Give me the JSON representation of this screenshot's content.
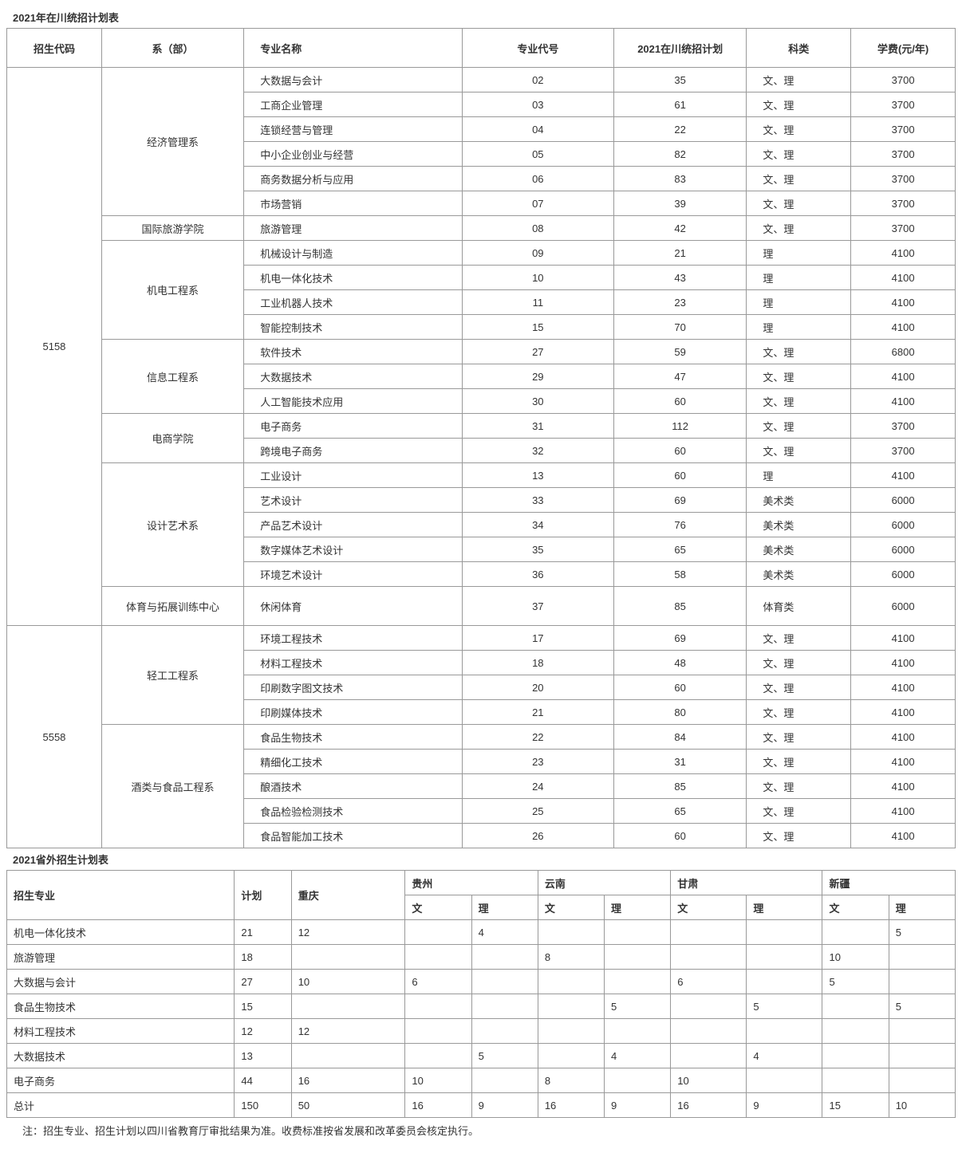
{
  "titles": {
    "t1": "2021年在川统招计划表",
    "t2": "2021省外招生计划表"
  },
  "headers1": {
    "code": "招生代码",
    "dept": "系（部）",
    "major": "专业名称",
    "majorCode": "专业代号",
    "plan": "2021在川统招计划",
    "category": "科类",
    "fee": "学费(元/年)"
  },
  "code1": "5158",
  "code2": "5558",
  "depts": {
    "d1": "经济管理系",
    "d2": "国际旅游学院",
    "d3": "机电工程系",
    "d4": "信息工程系",
    "d5": "电商学院",
    "d6": "设计艺术系",
    "d7": "体育与拓展训练中心",
    "d8": "轻工工程系",
    "d9": "酒类与食品工程系"
  },
  "rows1": [
    {
      "major": "大数据与会计",
      "mc": "02",
      "plan": "35",
      "cat": "文、理",
      "fee": "3700"
    },
    {
      "major": "工商企业管理",
      "mc": "03",
      "plan": "61",
      "cat": "文、理",
      "fee": "3700"
    },
    {
      "major": "连锁经营与管理",
      "mc": "04",
      "plan": "22",
      "cat": "文、理",
      "fee": "3700"
    },
    {
      "major": "中小企业创业与经营",
      "mc": "05",
      "plan": "82",
      "cat": "文、理",
      "fee": "3700"
    },
    {
      "major": "商务数据分析与应用",
      "mc": "06",
      "plan": "83",
      "cat": "文、理",
      "fee": "3700"
    },
    {
      "major": "市场营销",
      "mc": "07",
      "plan": "39",
      "cat": "文、理",
      "fee": "3700"
    },
    {
      "major": "旅游管理",
      "mc": "08",
      "plan": "42",
      "cat": "文、理",
      "fee": "3700"
    },
    {
      "major": "机械设计与制造",
      "mc": "09",
      "plan": "21",
      "cat": "理",
      "fee": "4100"
    },
    {
      "major": "机电一体化技术",
      "mc": "10",
      "plan": "43",
      "cat": "理",
      "fee": "4100"
    },
    {
      "major": "工业机器人技术",
      "mc": "11",
      "plan": "23",
      "cat": "理",
      "fee": "4100"
    },
    {
      "major": "智能控制技术",
      "mc": "15",
      "plan": "70",
      "cat": "理",
      "fee": "4100"
    },
    {
      "major": "软件技术",
      "mc": "27",
      "plan": "59",
      "cat": "文、理",
      "fee": "6800"
    },
    {
      "major": "大数据技术",
      "mc": "29",
      "plan": "47",
      "cat": "文、理",
      "fee": "4100"
    },
    {
      "major": "人工智能技术应用",
      "mc": "30",
      "plan": "60",
      "cat": "文、理",
      "fee": "4100"
    },
    {
      "major": "电子商务",
      "mc": "31",
      "plan": "112",
      "cat": "文、理",
      "fee": "3700"
    },
    {
      "major": "跨境电子商务",
      "mc": "32",
      "plan": "60",
      "cat": "文、理",
      "fee": "3700"
    },
    {
      "major": "工业设计",
      "mc": "13",
      "plan": "60",
      "cat": "理",
      "fee": "4100"
    },
    {
      "major": "艺术设计",
      "mc": "33",
      "plan": "69",
      "cat": "美术类",
      "fee": "6000"
    },
    {
      "major": "产品艺术设计",
      "mc": "34",
      "plan": "76",
      "cat": "美术类",
      "fee": "6000"
    },
    {
      "major": "数字媒体艺术设计",
      "mc": "35",
      "plan": "65",
      "cat": "美术类",
      "fee": "6000"
    },
    {
      "major": "环境艺术设计",
      "mc": "36",
      "plan": "58",
      "cat": "美术类",
      "fee": "6000"
    },
    {
      "major": "休闲体育",
      "mc": "37",
      "plan": "85",
      "cat": "体育类",
      "fee": "6000"
    },
    {
      "major": "环境工程技术",
      "mc": "17",
      "plan": "69",
      "cat": "文、理",
      "fee": "4100"
    },
    {
      "major": "材料工程技术",
      "mc": "18",
      "plan": "48",
      "cat": "文、理",
      "fee": "4100"
    },
    {
      "major": "印刷数字图文技术",
      "mc": "20",
      "plan": "60",
      "cat": "文、理",
      "fee": "4100"
    },
    {
      "major": "印刷媒体技术",
      "mc": "21",
      "plan": "80",
      "cat": "文、理",
      "fee": "4100"
    },
    {
      "major": "食品生物技术",
      "mc": "22",
      "plan": "84",
      "cat": "文、理",
      "fee": "4100"
    },
    {
      "major": "精细化工技术",
      "mc": "23",
      "plan": "31",
      "cat": "文、理",
      "fee": "4100"
    },
    {
      "major": "酿酒技术",
      "mc": "24",
      "plan": "85",
      "cat": "文、理",
      "fee": "4100"
    },
    {
      "major": "食品检验检测技术",
      "mc": "25",
      "plan": "65",
      "cat": "文、理",
      "fee": "4100"
    },
    {
      "major": "食品智能加工技术",
      "mc": "26",
      "plan": "60",
      "cat": "文、理",
      "fee": "4100"
    }
  ],
  "headers2": {
    "major": "招生专业",
    "plan": "计划",
    "cq": "重庆",
    "gz": "贵州",
    "yn": "云南",
    "gs": "甘肃",
    "xj": "新疆",
    "wen": "文",
    "li": "理"
  },
  "rows2": [
    {
      "major": "机电一体化技术",
      "plan": "21",
      "cq": "12",
      "gzw": "",
      "gzl": "4",
      "ynw": "",
      "ynl": "",
      "gsw": "",
      "gsl": "",
      "xjw": "",
      "xjl": "5"
    },
    {
      "major": "旅游管理",
      "plan": "18",
      "cq": "",
      "gzw": "",
      "gzl": "",
      "ynw": "8",
      "ynl": "",
      "gsw": "",
      "gsl": "",
      "xjw": "10",
      "xjl": ""
    },
    {
      "major": "大数据与会计",
      "plan": "27",
      "cq": "10",
      "gzw": "6",
      "gzl": "",
      "ynw": "",
      "ynl": "",
      "gsw": "6",
      "gsl": "",
      "xjw": "5",
      "xjl": ""
    },
    {
      "major": "食品生物技术",
      "plan": "15",
      "cq": "",
      "gzw": "",
      "gzl": "",
      "ynw": "",
      "ynl": "5",
      "gsw": "",
      "gsl": "5",
      "xjw": "",
      "xjl": "5"
    },
    {
      "major": "材料工程技术",
      "plan": "12",
      "cq": "12",
      "gzw": "",
      "gzl": "",
      "ynw": "",
      "ynl": "",
      "gsw": "",
      "gsl": "",
      "xjw": "",
      "xjl": ""
    },
    {
      "major": "大数据技术",
      "plan": "13",
      "cq": "",
      "gzw": "",
      "gzl": "5",
      "ynw": "",
      "ynl": "4",
      "gsw": "",
      "gsl": "4",
      "xjw": "",
      "xjl": ""
    },
    {
      "major": "电子商务",
      "plan": "44",
      "cq": "16",
      "gzw": "10",
      "gzl": "",
      "ynw": "8",
      "ynl": "",
      "gsw": "10",
      "gsl": "",
      "xjw": "",
      "xjl": ""
    },
    {
      "major": "总计",
      "plan": "150",
      "cq": "50",
      "gzw": "16",
      "gzl": "9",
      "ynw": "16",
      "ynl": "9",
      "gsw": "16",
      "gsl": "9",
      "xjw": "15",
      "xjl": "10"
    }
  ],
  "note": "注：招生专业、招生计划以四川省教育厅审批结果为准。收费标准按省发展和改革委员会核定执行。"
}
